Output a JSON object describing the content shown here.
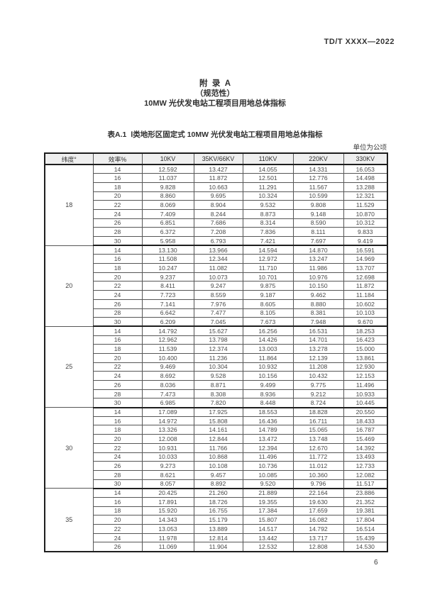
{
  "page": {
    "doc_number": "TD/T XXXX—2022",
    "page_number": "6"
  },
  "appendix": {
    "title": "附  录  A",
    "subtitle": "（规范性）",
    "heading": "10MW 光伏发电站工程项目用地总体指标"
  },
  "table": {
    "caption": "表A.1  Ⅰ类地形区固定式 10MW 光伏发电站工程项目用地总体指标",
    "unit_note": "单位为公顷",
    "columns": [
      "纬度°",
      "效率%",
      "10KV",
      "35KV/66KV",
      "110KV",
      "220KV",
      "330KV"
    ],
    "groups": [
      {
        "latitude": "18",
        "rows": [
          {
            "efficiency": "14",
            "values": [
              "12.592",
              "13.427",
              "14.055",
              "14.331",
              "16.053"
            ]
          },
          {
            "efficiency": "16",
            "values": [
              "11.037",
              "11.872",
              "12.501",
              "12.776",
              "14.498"
            ]
          },
          {
            "efficiency": "18",
            "values": [
              "9.828",
              "10.663",
              "11.291",
              "11.567",
              "13.288"
            ]
          },
          {
            "efficiency": "20",
            "values": [
              "8.860",
              "9.695",
              "10.324",
              "10.599",
              "12.321"
            ]
          },
          {
            "efficiency": "22",
            "values": [
              "8.069",
              "8.904",
              "9.532",
              "9.808",
              "11.529"
            ]
          },
          {
            "efficiency": "24",
            "values": [
              "7.409",
              "8.244",
              "8.873",
              "9.148",
              "10.870"
            ]
          },
          {
            "efficiency": "26",
            "values": [
              "6.851",
              "7.686",
              "8.314",
              "8.590",
              "10.312"
            ]
          },
          {
            "efficiency": "28",
            "values": [
              "6.372",
              "7.208",
              "7.836",
              "8.111",
              "9.833"
            ]
          },
          {
            "efficiency": "30",
            "values": [
              "5.958",
              "6.793",
              "7.421",
              "7.697",
              "9.419"
            ]
          }
        ]
      },
      {
        "latitude": "20",
        "rows": [
          {
            "efficiency": "14",
            "values": [
              "13.130",
              "13.966",
              "14.594",
              "14.870",
              "16.591"
            ]
          },
          {
            "efficiency": "16",
            "values": [
              "11.508",
              "12.344",
              "12.972",
              "13.247",
              "14.969"
            ]
          },
          {
            "efficiency": "18",
            "values": [
              "10.247",
              "11.082",
              "11.710",
              "11.986",
              "13.707"
            ]
          },
          {
            "efficiency": "20",
            "values": [
              "9.237",
              "10.073",
              "10.701",
              "10.976",
              "12.698"
            ]
          },
          {
            "efficiency": "22",
            "values": [
              "8.411",
              "9.247",
              "9.875",
              "10.150",
              "11.872"
            ]
          },
          {
            "efficiency": "24",
            "values": [
              "7.723",
              "8.559",
              "9.187",
              "9.462",
              "11.184"
            ]
          },
          {
            "efficiency": "26",
            "values": [
              "7.141",
              "7.976",
              "8.605",
              "8.880",
              "10.602"
            ]
          },
          {
            "efficiency": "28",
            "values": [
              "6.642",
              "7.477",
              "8.105",
              "8.381",
              "10.103"
            ]
          },
          {
            "efficiency": "30",
            "values": [
              "6.209",
              "7.045",
              "7.673",
              "7.948",
              "9.670"
            ]
          }
        ]
      },
      {
        "latitude": "25",
        "rows": [
          {
            "efficiency": "14",
            "values": [
              "14.792",
              "15.627",
              "16.256",
              "16.531",
              "18.253"
            ]
          },
          {
            "efficiency": "16",
            "values": [
              "12.962",
              "13.798",
              "14.426",
              "14.701",
              "16.423"
            ]
          },
          {
            "efficiency": "18",
            "values": [
              "11.539",
              "12.374",
              "13.003",
              "13.278",
              "15.000"
            ]
          },
          {
            "efficiency": "20",
            "values": [
              "10.400",
              "11.236",
              "11.864",
              "12.139",
              "13.861"
            ]
          },
          {
            "efficiency": "22",
            "values": [
              "9.469",
              "10.304",
              "10.932",
              "11.208",
              "12.930"
            ]
          },
          {
            "efficiency": "24",
            "values": [
              "8.692",
              "9.528",
              "10.156",
              "10.432",
              "12.153"
            ]
          },
          {
            "efficiency": "26",
            "values": [
              "8.036",
              "8.871",
              "9.499",
              "9.775",
              "11.496"
            ]
          },
          {
            "efficiency": "28",
            "values": [
              "7.473",
              "8.308",
              "8.936",
              "9.212",
              "10.933"
            ]
          },
          {
            "efficiency": "30",
            "values": [
              "6.985",
              "7.820",
              "8.448",
              "8.724",
              "10.445"
            ]
          }
        ]
      },
      {
        "latitude": "30",
        "rows": [
          {
            "efficiency": "14",
            "values": [
              "17.089",
              "17.925",
              "18.553",
              "18.828",
              "20.550"
            ]
          },
          {
            "efficiency": "16",
            "values": [
              "14.972",
              "15.808",
              "16.436",
              "16.711",
              "18.433"
            ]
          },
          {
            "efficiency": "18",
            "values": [
              "13.326",
              "14.161",
              "14.789",
              "15.065",
              "16.787"
            ]
          },
          {
            "efficiency": "20",
            "values": [
              "12.008",
              "12.844",
              "13.472",
              "13.748",
              "15.469"
            ]
          },
          {
            "efficiency": "22",
            "values": [
              "10.931",
              "11.766",
              "12.394",
              "12.670",
              "14.392"
            ]
          },
          {
            "efficiency": "24",
            "values": [
              "10.033",
              "10.868",
              "11.496",
              "11.772",
              "13.493"
            ]
          },
          {
            "efficiency": "26",
            "values": [
              "9.273",
              "10.108",
              "10.736",
              "11.012",
              "12.733"
            ]
          },
          {
            "efficiency": "28",
            "values": [
              "8.621",
              "9.457",
              "10.085",
              "10.360",
              "12.082"
            ]
          },
          {
            "efficiency": "30",
            "values": [
              "8.057",
              "8.892",
              "9.520",
              "9.796",
              "11.517"
            ]
          }
        ]
      },
      {
        "latitude": "35",
        "rows": [
          {
            "efficiency": "14",
            "values": [
              "20.425",
              "21.260",
              "21.889",
              "22.164",
              "23.886"
            ]
          },
          {
            "efficiency": "16",
            "values": [
              "17.891",
              "18.726",
              "19.355",
              "19.630",
              "21.352"
            ]
          },
          {
            "efficiency": "18",
            "values": [
              "15.920",
              "16.755",
              "17.384",
              "17.659",
              "19.381"
            ]
          },
          {
            "efficiency": "20",
            "values": [
              "14.343",
              "15.179",
              "15.807",
              "16.082",
              "17.804"
            ]
          },
          {
            "efficiency": "22",
            "values": [
              "13.053",
              "13.889",
              "14.517",
              "14.792",
              "16.514"
            ]
          },
          {
            "efficiency": "24",
            "values": [
              "11.978",
              "12.814",
              "13.442",
              "13.717",
              "15.439"
            ]
          },
          {
            "efficiency": "26",
            "values": [
              "11.069",
              "11.904",
              "12.532",
              "12.808",
              "14.530"
            ]
          }
        ]
      }
    ]
  }
}
